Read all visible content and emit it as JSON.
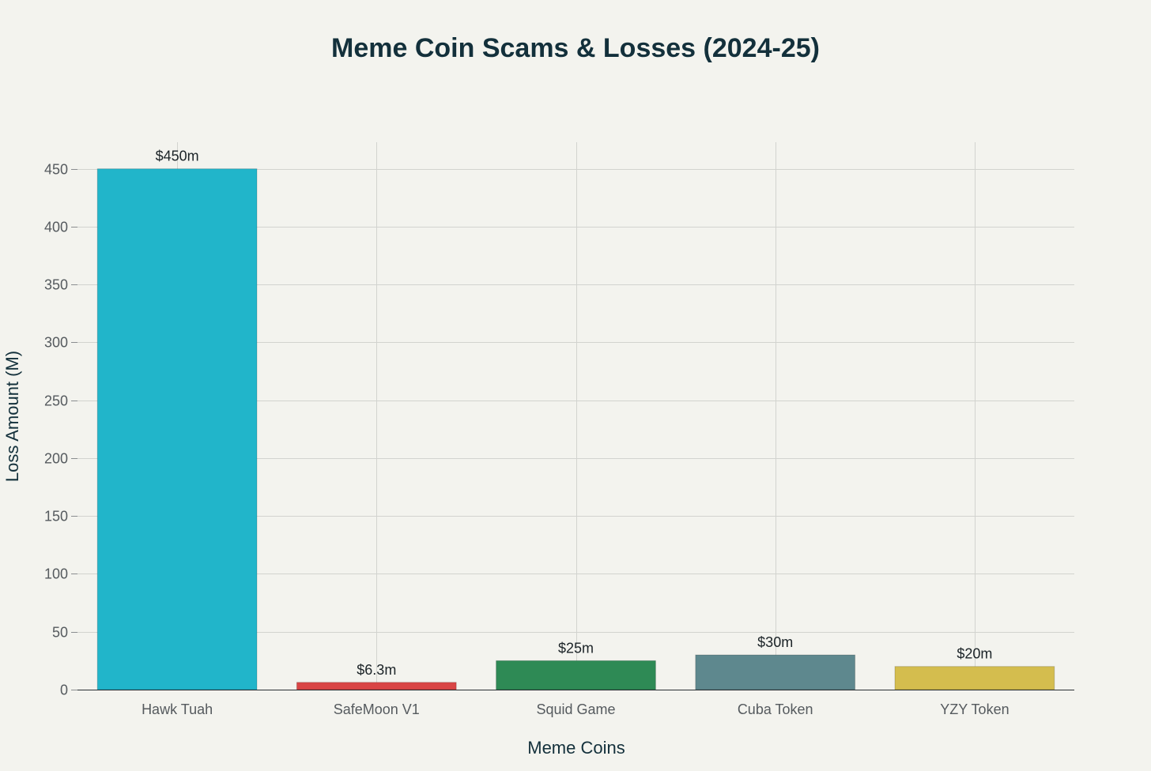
{
  "chart_data": {
    "type": "bar",
    "title": "Meme Coin Scams & Losses (2024-25)",
    "xlabel": "Meme Coins",
    "ylabel": "Loss Amount (M)",
    "categories": [
      "Hawk Tuah",
      "SafeMoon V1",
      "Squid Game",
      "Cuba Token",
      "YZY Token"
    ],
    "values": [
      450,
      6.3,
      25,
      30,
      20
    ],
    "data_labels": [
      "$450m",
      "$6.3m",
      "$25m",
      "$30m",
      "$20m"
    ],
    "colors": [
      "#21b5ca",
      "#d94545",
      "#2e8a55",
      "#5e888e",
      "#d4bd4e"
    ],
    "ylim": [
      0,
      473
    ],
    "yticks": [
      0,
      50,
      100,
      150,
      200,
      250,
      300,
      350,
      400,
      450
    ],
    "grid": true,
    "legend": "none"
  }
}
